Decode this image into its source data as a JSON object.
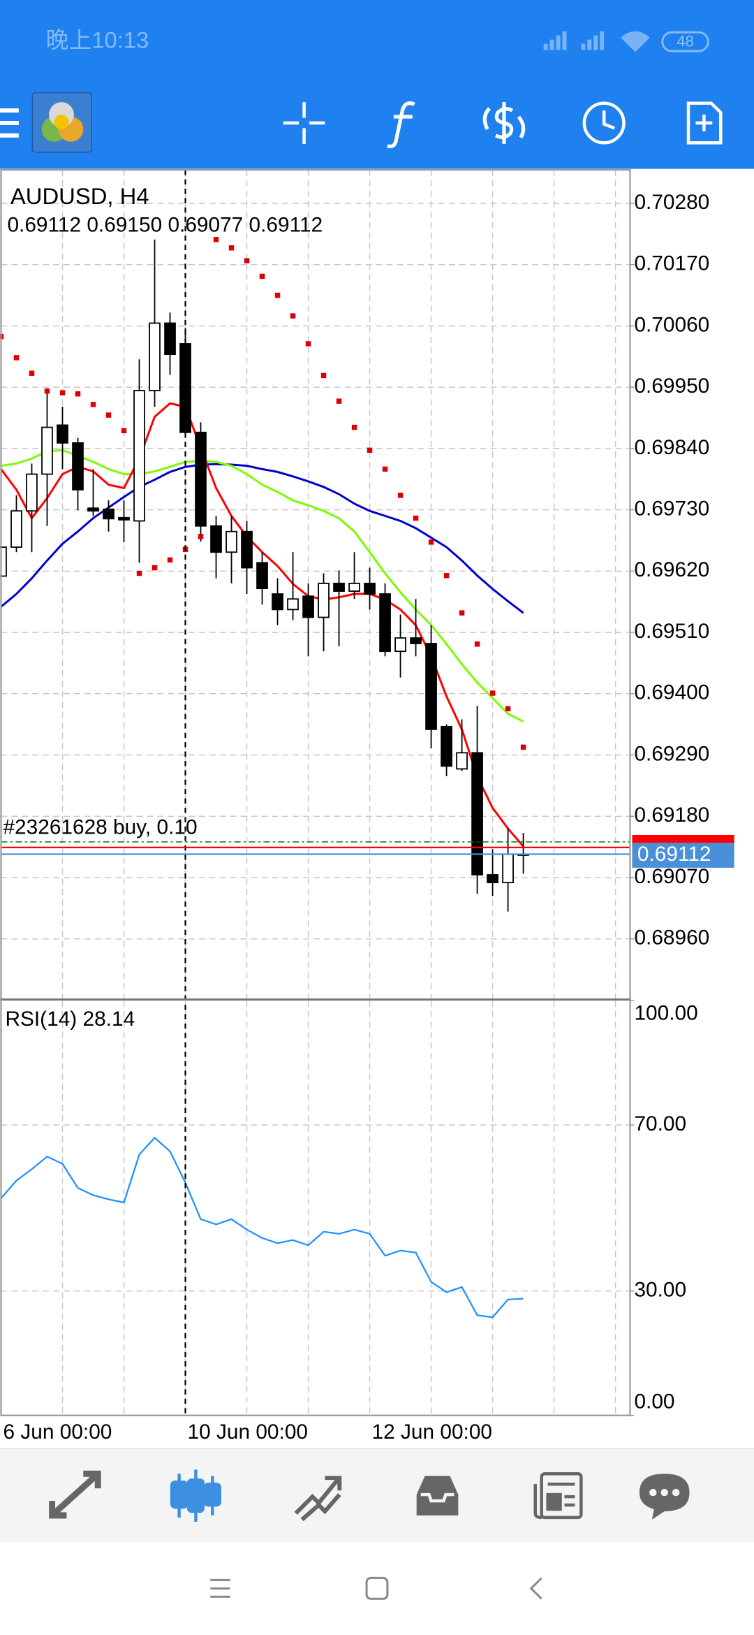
{
  "status_bar": {
    "time": "晚上10:13",
    "battery": "48"
  },
  "chart_data": [
    {
      "type": "candlestick",
      "title": "AUDUSD, H4",
      "subtitle": "0.69112 0.69150 0.69077 0.69112",
      "categories": [
        "6 Jun 00:00",
        null,
        null,
        null,
        null,
        null,
        null,
        null,
        null,
        null,
        null,
        null,
        "10 Jun 00:00",
        null,
        null,
        null,
        null,
        null,
        null,
        null,
        null,
        null,
        null,
        null,
        "12 Jun 00:00",
        null,
        null,
        null,
        null,
        null,
        null,
        null,
        null,
        null,
        null
      ],
      "open": [
        0.69611,
        0.69663,
        0.69728,
        0.69794,
        0.69882,
        0.6985,
        0.69733,
        0.69731,
        0.69716,
        0.6971,
        0.69944,
        0.70065,
        0.70028,
        0.69869,
        0.69701,
        0.69654,
        0.69691,
        0.69635,
        0.69579,
        0.69551,
        0.69575,
        0.69537,
        0.69598,
        0.69584,
        0.69598,
        0.69579,
        0.69476,
        0.695,
        0.6949,
        0.69341,
        0.69265,
        0.69294,
        0.69075,
        0.69061,
        0.69112
      ],
      "high": [
        0.69691,
        0.69756,
        0.69813,
        0.69948,
        0.69915,
        0.69859,
        0.69803,
        0.69747,
        0.69747,
        0.7,
        0.70215,
        0.70084,
        0.70056,
        0.69887,
        0.69719,
        0.69719,
        0.6971,
        0.69654,
        0.69607,
        0.69654,
        0.69598,
        0.69616,
        0.69621,
        0.69654,
        0.69626,
        0.69598,
        0.69542,
        0.6957,
        0.69523,
        0.69345,
        0.69354,
        0.69378,
        0.69121,
        0.69158,
        0.6915
      ],
      "low": [
        0.69598,
        0.69654,
        0.69654,
        0.69701,
        0.69803,
        0.69729,
        0.69719,
        0.69691,
        0.69672,
        0.69635,
        0.69915,
        0.69972,
        0.69859,
        0.69673,
        0.69607,
        0.69598,
        0.69579,
        0.6956,
        0.69523,
        0.69532,
        0.69467,
        0.69476,
        0.69485,
        0.6957,
        0.69551,
        0.69467,
        0.69429,
        0.69467,
        0.69302,
        0.69252,
        0.69261,
        0.69041,
        0.69037,
        0.69009,
        0.69077
      ],
      "close": [
        0.69663,
        0.69728,
        0.69794,
        0.69878,
        0.6985,
        0.69766,
        0.69728,
        0.69714,
        0.69712,
        0.69944,
        0.70065,
        0.70009,
        0.69869,
        0.69701,
        0.69654,
        0.69691,
        0.69626,
        0.69589,
        0.69551,
        0.6957,
        0.69537,
        0.69598,
        0.69584,
        0.69598,
        0.69579,
        0.69476,
        0.695,
        0.6949,
        0.69336,
        0.6927,
        0.69294,
        0.69075,
        0.69061,
        0.69112,
        0.69112
      ],
      "up_color": "#ffffff",
      "down_color": "#000000",
      "series": [
        {
          "color": "#0000cd",
          "values": [
            0.69556,
            0.69579,
            0.69607,
            0.69639,
            0.69669,
            0.69691,
            0.69715,
            0.69734,
            0.69753,
            0.69771,
            0.69784,
            0.69798,
            0.69807,
            0.69811,
            0.69812,
            0.69811,
            0.69809,
            0.69803,
            0.69798,
            0.6979,
            0.69781,
            0.69771,
            0.69758,
            0.69741,
            0.69728,
            0.69719,
            0.6971,
            0.69697,
            0.6968,
            0.69663,
            0.69639,
            0.69612,
            0.69588,
            0.69566,
            0.69545
          ]
        },
        {
          "color": "#7cfc00",
          "values": [
            0.69809,
            0.69813,
            0.69822,
            0.69835,
            0.69837,
            0.69827,
            0.69816,
            0.69803,
            0.69794,
            0.69794,
            0.69799,
            0.69807,
            0.69816,
            0.69818,
            0.69816,
            0.69809,
            0.69794,
            0.69775,
            0.69762,
            0.69747,
            0.69738,
            0.69728,
            0.69715,
            0.69691,
            0.69654,
            0.69616,
            0.69582,
            0.69551,
            0.69523,
            0.69489,
            0.69453,
            0.6942,
            0.69392,
            0.69364,
            0.6935
          ]
        },
        {
          "color": "#ff0000",
          "values": [
            0.69803,
            0.69766,
            0.69715,
            0.69751,
            0.69794,
            0.69807,
            0.69799,
            0.69775,
            0.69769,
            0.69822,
            0.69897,
            0.69921,
            0.69915,
            0.69841,
            0.69769,
            0.69719,
            0.69682,
            0.69654,
            0.69629,
            0.69597,
            0.69575,
            0.69569,
            0.69573,
            0.69579,
            0.69579,
            0.69569,
            0.69551,
            0.69523,
            0.69467,
            0.69395,
            0.69336,
            0.69251,
            0.69195,
            0.69158,
            0.69126
          ]
        }
      ],
      "sar": {
        "color": "#dd0000",
        "values": [
          0.70041,
          0.70003,
          0.69975,
          0.69943,
          0.6994,
          0.69938,
          0.69919,
          0.699,
          0.69872,
          0.69616,
          0.69626,
          0.6964,
          0.69659,
          0.69682,
          0.70215,
          0.702,
          0.70177,
          0.70149,
          0.70115,
          0.70078,
          0.70028,
          0.69971,
          0.69925,
          0.69878,
          0.69837,
          0.69803,
          0.69756,
          0.69715,
          0.69672,
          0.69612,
          0.69545,
          0.69489,
          0.69401,
          0.69373,
          0.69304
        ]
      },
      "bid_color": "#4a90d9",
      "ask_line": {
        "value": 0.69124,
        "color": "#ff0000"
      },
      "order": {
        "label": "#23261628 buy, 0.10",
        "value": 0.69134,
        "color": "#008000"
      },
      "ylim": [
        0.68853,
        0.7034
      ],
      "yticks": [
        {
          "value": 0.7028,
          "label": "0.70280"
        },
        {
          "value": 0.7017,
          "label": "0.70170"
        },
        {
          "value": 0.7006,
          "label": "0.70060"
        },
        {
          "value": 0.6995,
          "label": "0.69950"
        },
        {
          "value": 0.6984,
          "label": "0.69840"
        },
        {
          "value": 0.6973,
          "label": "0.69730"
        },
        {
          "value": 0.6962,
          "label": "0.69620"
        },
        {
          "value": 0.6951,
          "label": "0.69510"
        },
        {
          "value": 0.694,
          "label": "0.69400"
        },
        {
          "value": 0.6929,
          "label": "0.69290"
        },
        {
          "value": 0.6918,
          "label": "0.69180"
        },
        {
          "value": 0.6907,
          "label": "0.69070"
        },
        {
          "value": 0.6896,
          "label": "0.68960"
        }
      ],
      "grid": true
    },
    {
      "type": "line",
      "title": "RSI(14) 28.14",
      "color": "#1e90ff",
      "values": [
        52.33,
        56.6,
        59.37,
        62.39,
        60.63,
        54.84,
        53.08,
        52.08,
        51.32,
        62.89,
        66.92,
        63.65,
        56.1,
        47.3,
        46.04,
        47.3,
        44.78,
        42.77,
        41.51,
        42.26,
        41.01,
        44.28,
        43.77,
        44.78,
        43.77,
        38.49,
        39.75,
        39.25,
        32.2,
        29.69,
        30.94,
        24.15,
        23.65,
        27.92,
        28.14
      ],
      "ylim": [
        0,
        100
      ],
      "yticks": [
        {
          "value": 0,
          "label": "0.00"
        },
        {
          "value": 30,
          "label": "30.00"
        },
        {
          "value": 70,
          "label": "70.00"
        },
        {
          "value": 100,
          "label": "100.00"
        }
      ],
      "grid": true
    }
  ]
}
